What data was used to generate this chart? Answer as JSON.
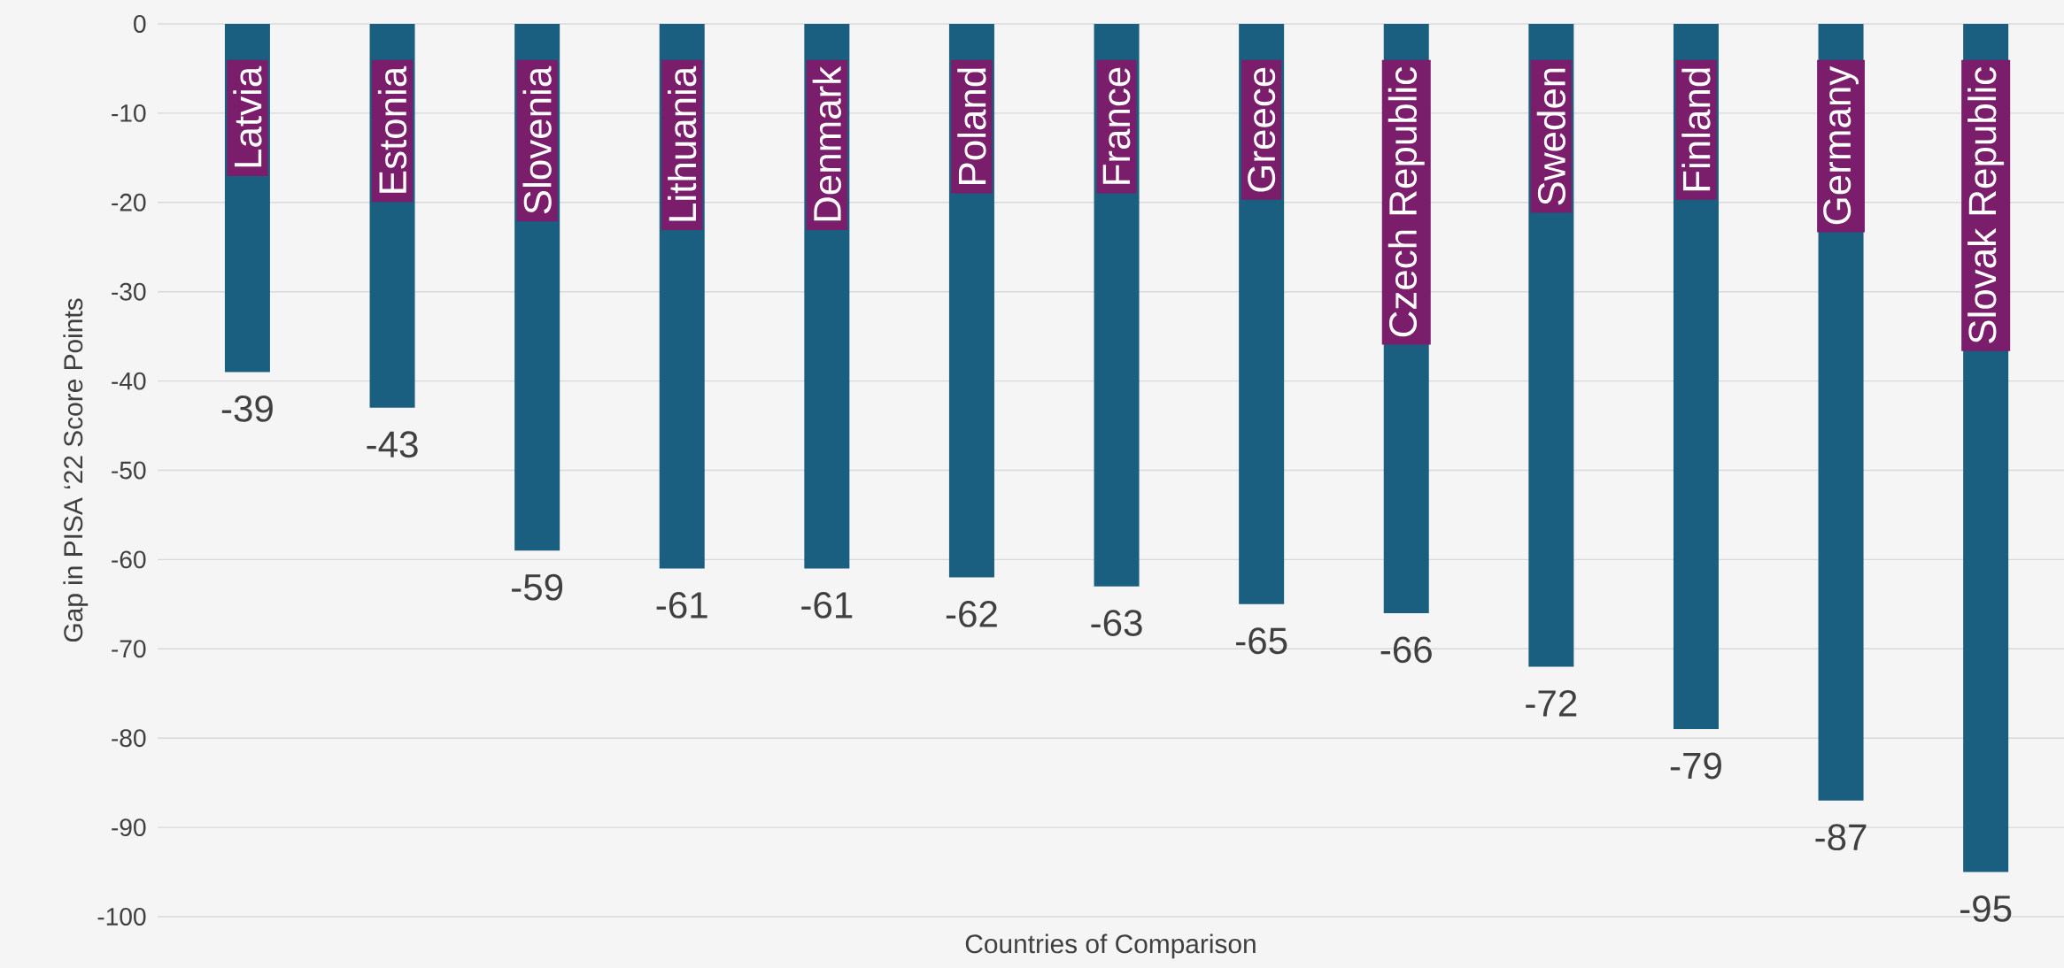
{
  "chart_data": {
    "type": "bar",
    "xlabel": "Countries of Comparison",
    "ylabel": "Gap in PISA ‘22 Score Points",
    "categories": [
      "Latvia",
      "Estonia",
      "Slovenia",
      "Lithuania",
      "Denmark",
      "Poland",
      "France",
      "Greece",
      "Czech Republic",
      "Sweden",
      "Finland",
      "Germany",
      "Slovak Republic"
    ],
    "values": [
      -39,
      -43,
      -59,
      -61,
      -61,
      -62,
      -63,
      -65,
      -66,
      -72,
      -79,
      -87,
      -95
    ],
    "color": "#1a5e80",
    "ylim": [
      -100,
      0
    ],
    "yticks": [
      -100,
      -90,
      -80,
      -70,
      -60,
      -50,
      -40,
      -30,
      -20,
      -10,
      0
    ],
    "grid": "y",
    "data_labels": true
  }
}
